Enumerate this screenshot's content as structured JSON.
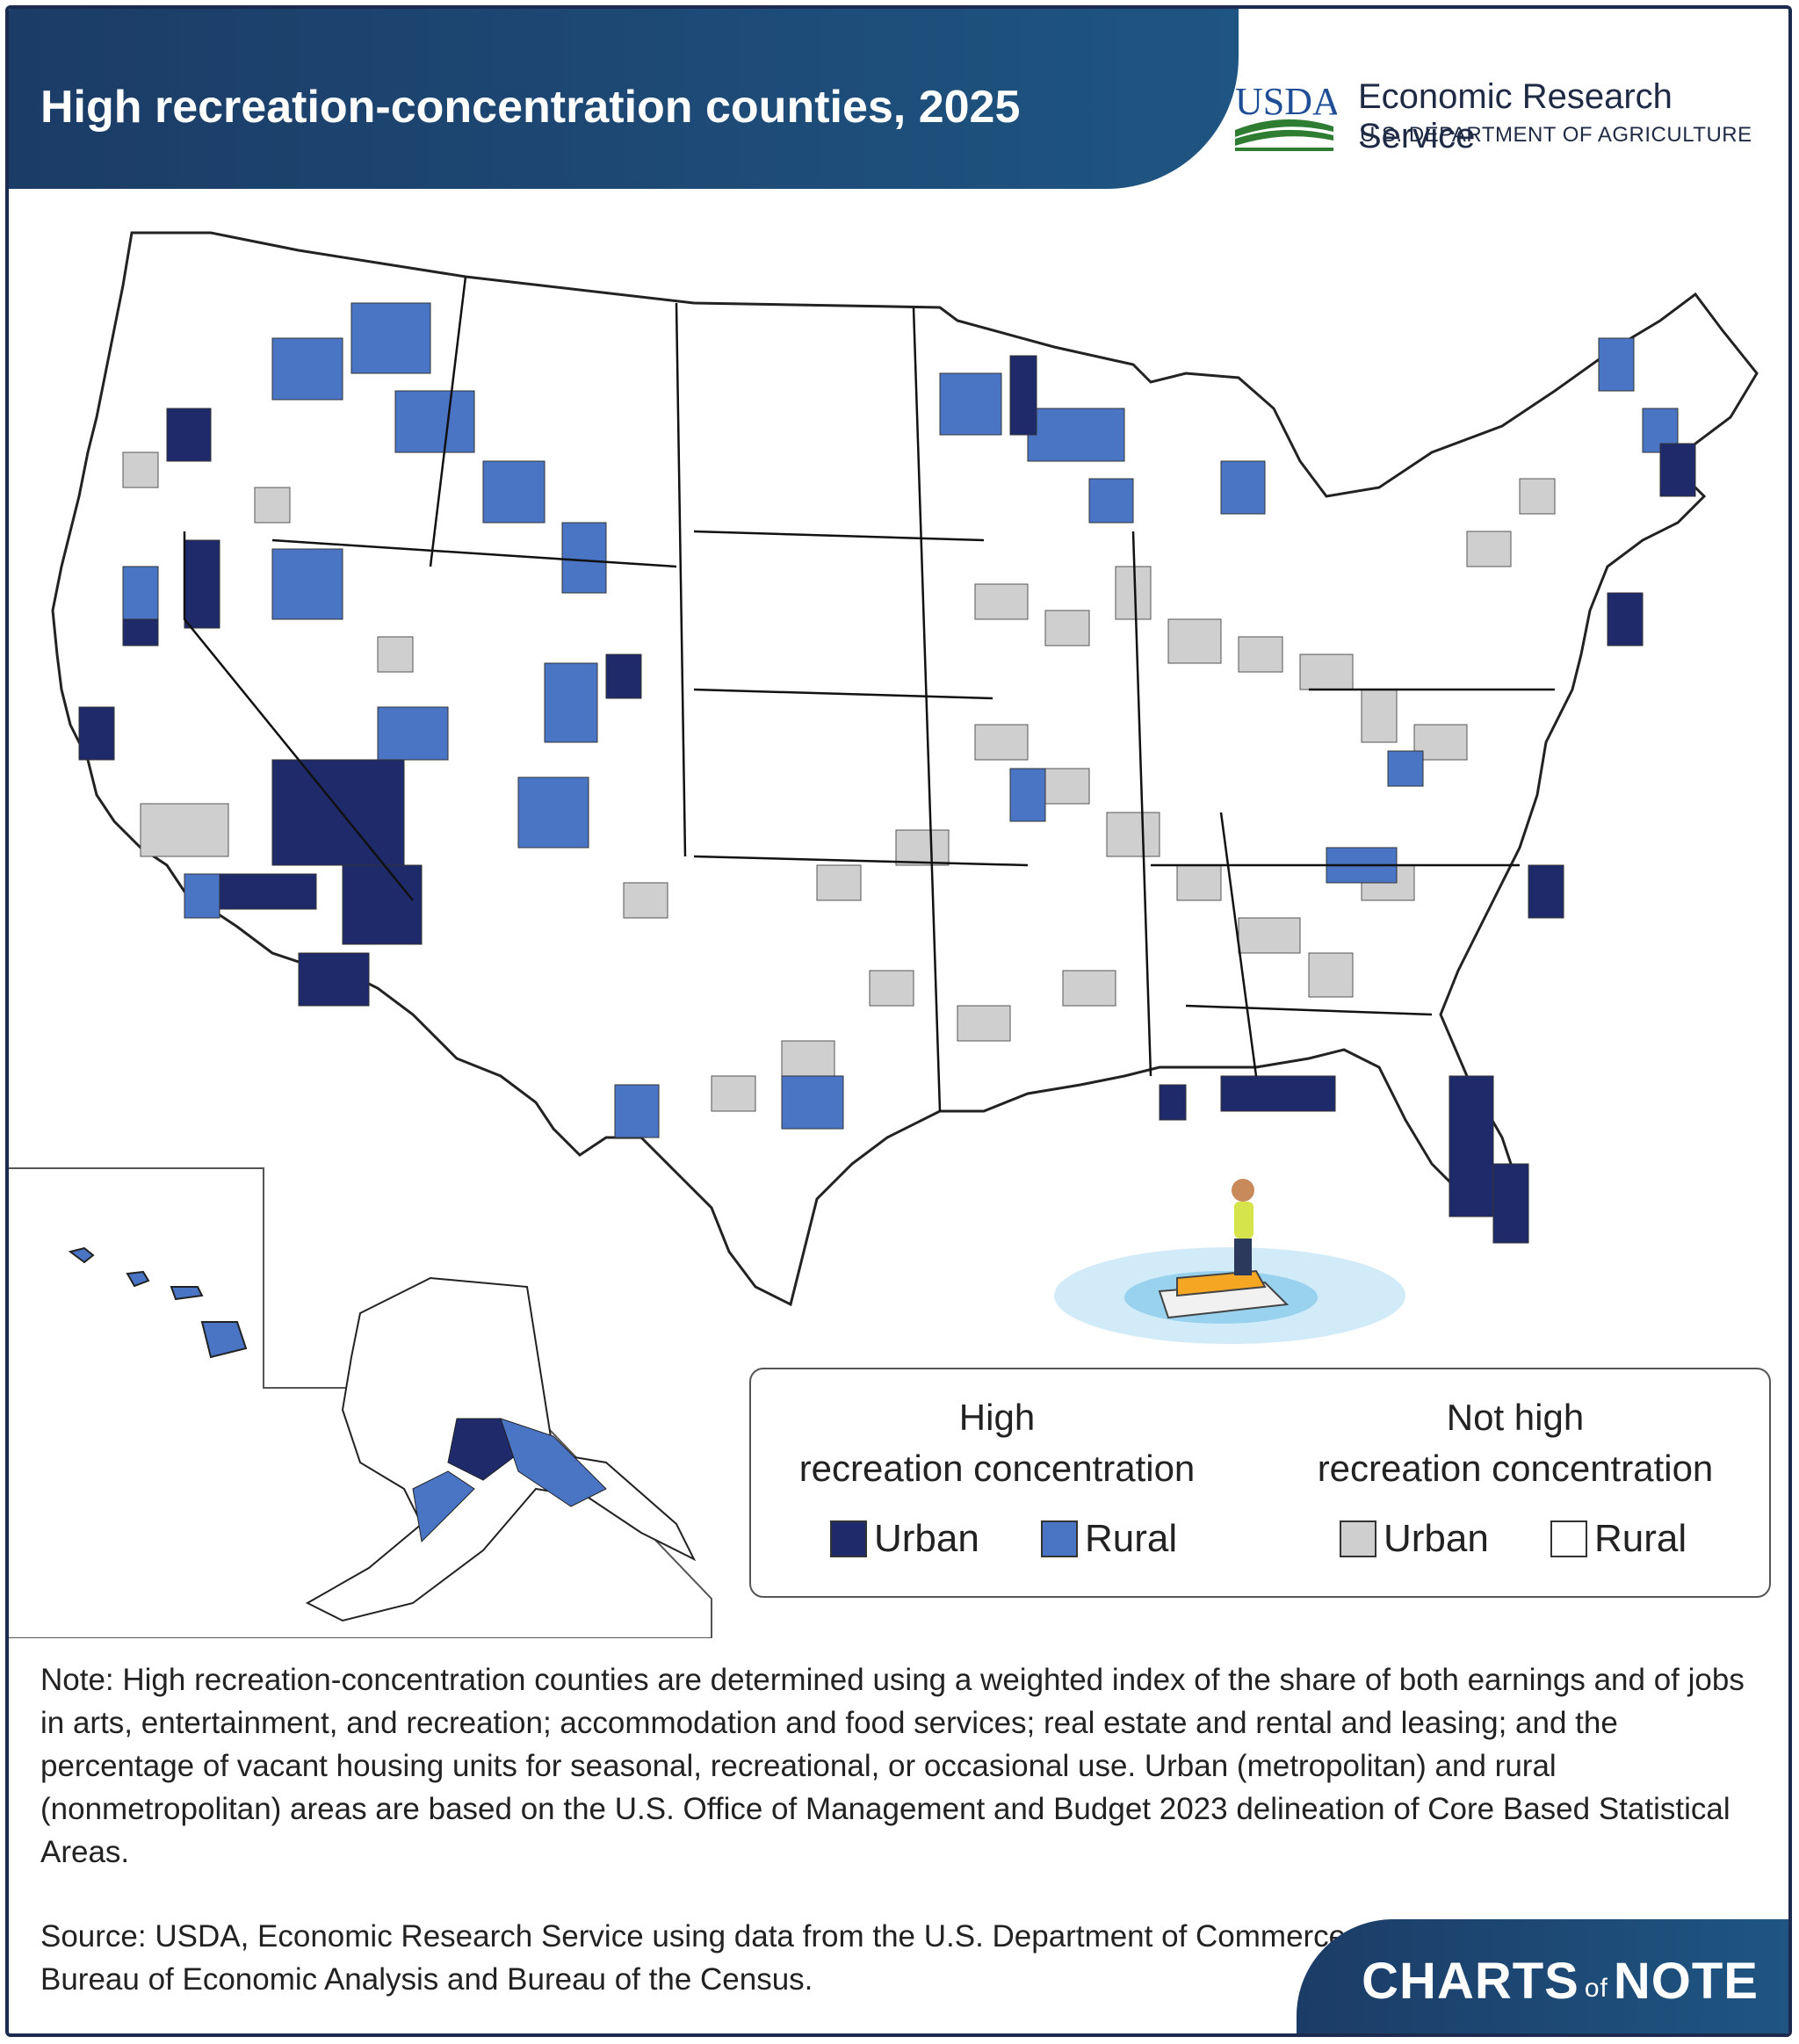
{
  "header": {
    "title": "High recreation-concentration counties, 2025",
    "logo_text": "USDA",
    "org_name": "Economic Research Service",
    "org_dept": "U.S. DEPARTMENT OF AGRICULTURE"
  },
  "legend": {
    "group_high_line1": "High",
    "group_high_line2": "recreation concentration",
    "group_not_line1": "Not high",
    "group_not_line2": "recreation concentration",
    "items": [
      {
        "label": "Urban",
        "color": "#1f2a6b"
      },
      {
        "label": "Rural",
        "color": "#4a74c4"
      },
      {
        "label": "Urban",
        "color": "#cfcfcf"
      },
      {
        "label": "Rural",
        "color": "#ffffff"
      }
    ]
  },
  "note": "Note: High recreation-concentration counties are determined using a weighted index of the share of both earnings and of jobs in arts, entertainment, and recreation; accommodation and food services; real estate and rental and leasing; and the percentage of vacant housing units for seasonal, recreational, or occasional use. Urban (metropolitan) and rural (nonmetropolitan) areas are based on the U.S. Office of Management and Budget 2023 delineation of Core Based Statistical Areas.",
  "source": "Source: USDA, Economic Research Service using data from the U.S. Department of Commerce, Bureau of Economic Analysis and Bureau of the Census.",
  "brand": {
    "part1": "CHARTS",
    "part2": "of",
    "part3": "NOTE"
  },
  "map": {
    "colors": {
      "high_urban": "#1f2a6b",
      "high_rural": "#4a74c4",
      "not_urban": "#cfcfcf",
      "not_rural": "#ffffff",
      "border": "#333333"
    }
  }
}
